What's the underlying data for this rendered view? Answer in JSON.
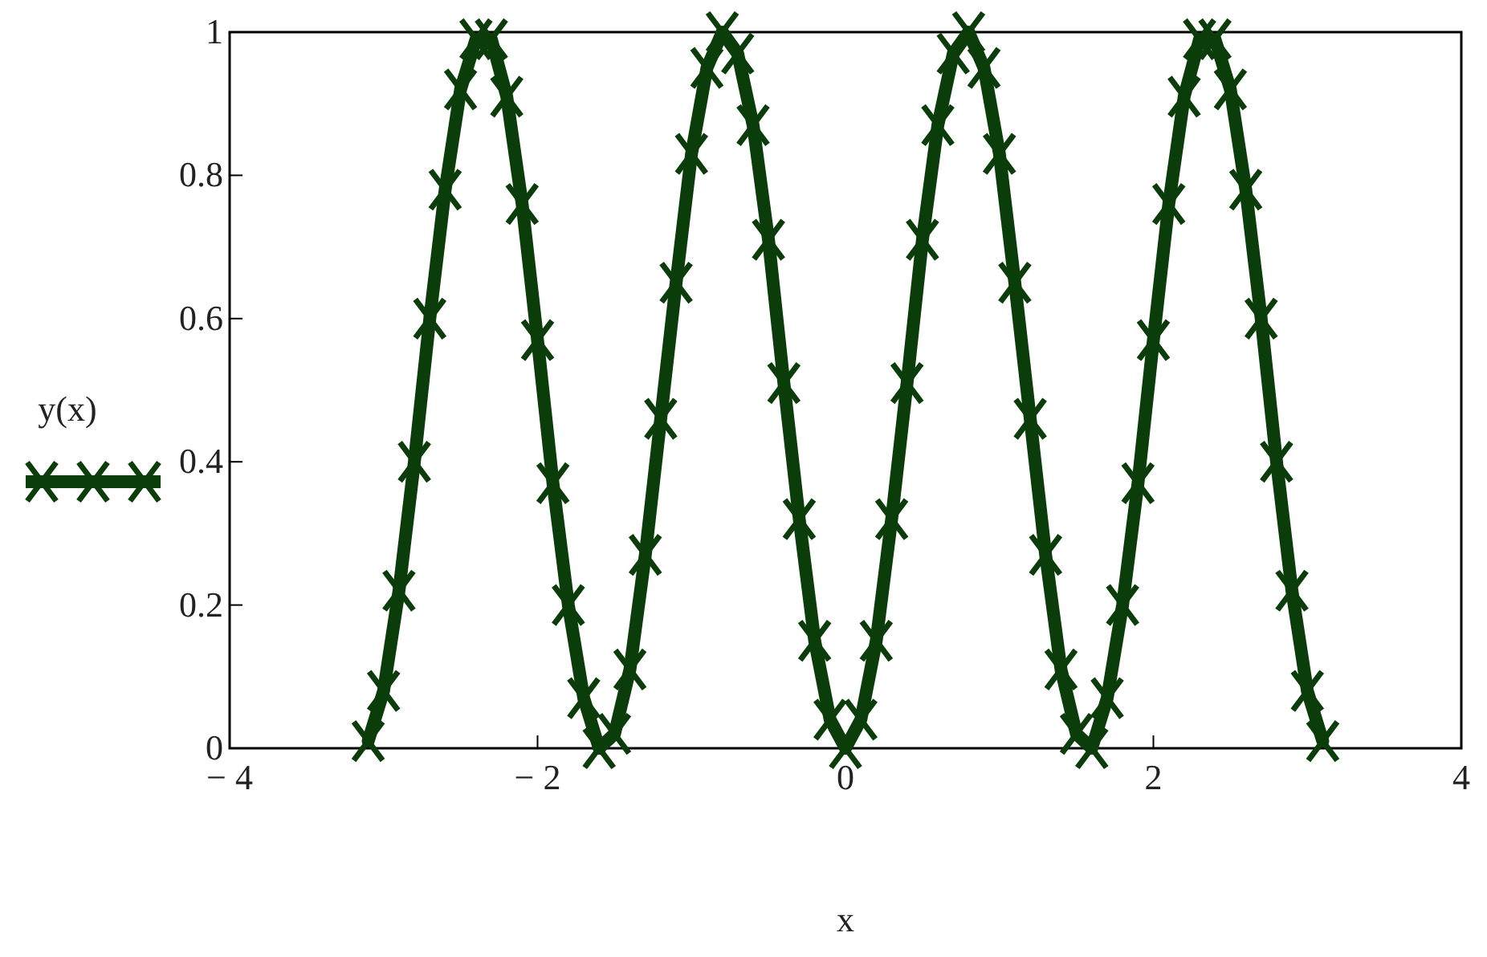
{
  "chart_data": {
    "type": "line",
    "xlabel": "x",
    "ylabel": "y(x)",
    "marker": "cross",
    "line_style": "solid",
    "grid": false,
    "legend": false,
    "xlim": [
      -4,
      4
    ],
    "xticks": [
      {
        "value": -4,
        "label": "− 4"
      },
      {
        "value": -2,
        "label": "− 2"
      },
      0,
      2,
      4
    ],
    "ylim": [
      0,
      1
    ],
    "yticks": [
      0,
      0.2,
      0.4,
      0.6,
      0.8,
      1
    ],
    "x": [
      -3.1,
      -3.0,
      -2.9,
      -2.8,
      -2.7,
      -2.6,
      -2.5,
      -2.4,
      -2.3,
      -2.2,
      -2.1,
      -2.0,
      -1.9,
      -1.8,
      -1.7,
      -1.6,
      -1.5,
      -1.4,
      -1.3,
      -1.2,
      -1.1,
      -1.0,
      -0.9,
      -0.8,
      -0.7,
      -0.6,
      -0.5,
      -0.4,
      -0.3,
      -0.2,
      -0.1,
      0,
      0.1,
      0.2,
      0.3,
      0.4,
      0.5,
      0.6,
      0.7,
      0.8,
      0.9,
      1.0,
      1.1,
      1.2,
      1.3,
      1.4,
      1.5,
      1.6,
      1.7,
      1.8,
      1.9,
      2.0,
      2.1,
      2.2,
      2.3,
      2.4,
      2.5,
      2.6,
      2.7,
      2.8,
      2.9,
      3.0,
      3.1
    ],
    "series": [
      {
        "color": "#0a3d0a",
        "values": [
          0.01,
          0.08,
          0.22,
          0.4,
          0.6,
          0.78,
          0.92,
          0.99,
          0.99,
          0.91,
          0.76,
          0.57,
          0.37,
          0.2,
          0.07,
          0.0,
          0.02,
          0.11,
          0.27,
          0.46,
          0.65,
          0.83,
          0.95,
          1.0,
          0.97,
          0.87,
          0.71,
          0.51,
          0.32,
          0.15,
          0.04,
          0,
          0.04,
          0.15,
          0.32,
          0.51,
          0.71,
          0.87,
          0.97,
          1.0,
          0.95,
          0.83,
          0.65,
          0.46,
          0.27,
          0.11,
          0.02,
          0.0,
          0.07,
          0.2,
          0.37,
          0.57,
          0.76,
          0.91,
          0.99,
          0.99,
          0.92,
          0.78,
          0.6,
          0.4,
          0.22,
          0.08,
          0.01
        ]
      }
    ]
  }
}
